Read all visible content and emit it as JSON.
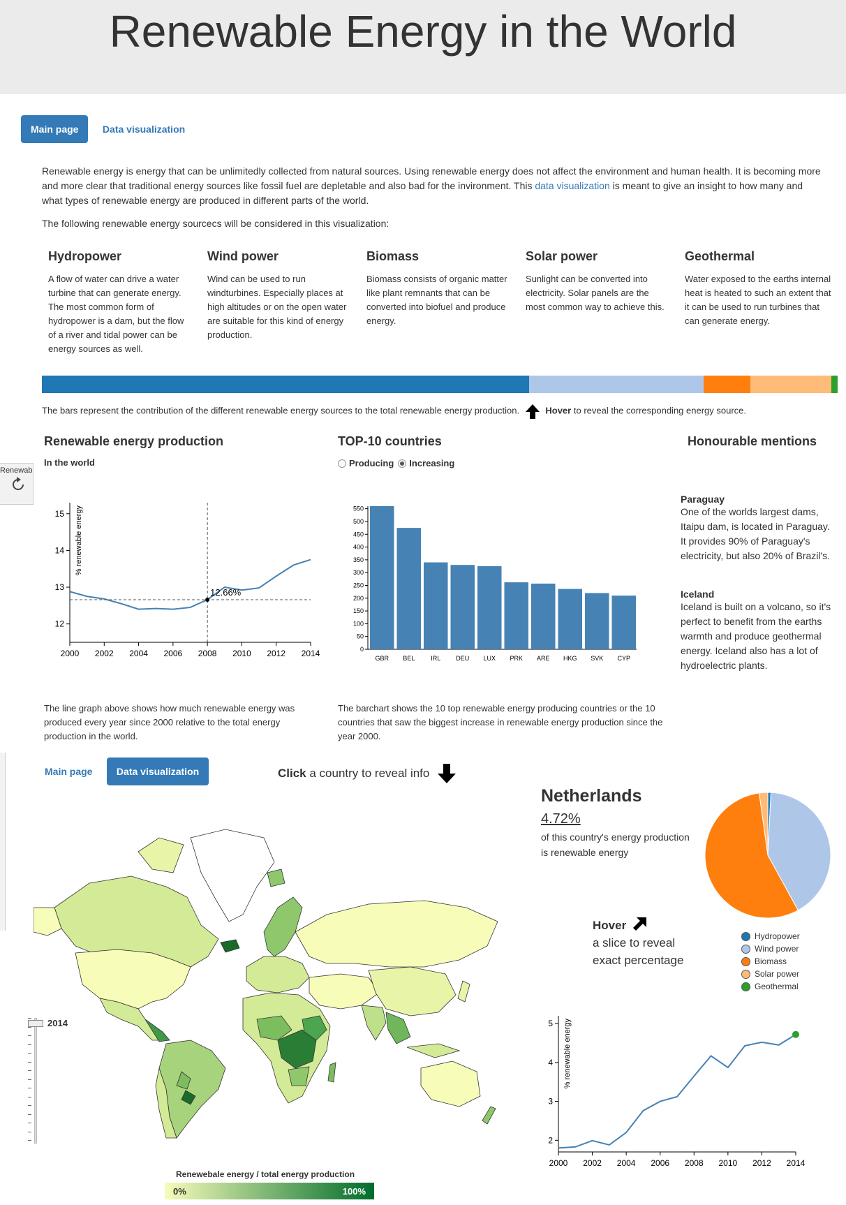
{
  "header": {
    "title": "Renewable Energy in the World"
  },
  "nav_top": {
    "main_label": "Main page",
    "dataviz_label": "Data visualization"
  },
  "intro": {
    "p1_a": "Renewable energy is energy that can be unlimitedly collected from natural sources. Using renewable energy does not affect the environment and human health. It is becoming more and more clear that traditional energy sources like fossil fuel are depletable and also bad for the invironment. This ",
    "p1_link": "data visualization",
    "p1_b": " is meant to give an insight to how many and what types of renewable energy are produced in different parts of the world.",
    "p2": "The following renewable energy sourcecs will be considered in this visualization:"
  },
  "sources": [
    {
      "title": "Hydropower",
      "text": "A flow of water can drive a water turbine that can generate energy. The most common form of hydropower is a dam, but the flow of a river and tidal power can be energy sources as well."
    },
    {
      "title": "Wind power",
      "text": "Wind can be used to run windturbines. Especially places at high altitudes or on the open water are suitable for this kind of energy production."
    },
    {
      "title": "Biomass",
      "text": "Biomass consists of organic matter like plant remnants that can be converted into biofuel and produce energy."
    },
    {
      "title": "Solar power",
      "text": "Sunlight can be converted into electricity. Solar panels are the most common way to achieve this."
    },
    {
      "title": "Geothermal",
      "text": "Water exposed to the earths internal heat is heated to such an extent that it can be used to run turbines that can generate energy."
    }
  ],
  "contribution_bar": {
    "segments": [
      {
        "name": "Hydropower",
        "fraction": 0.612,
        "color": "#1f77b4"
      },
      {
        "name": "Wind power",
        "fraction": 0.22,
        "color": "#aec7e8"
      },
      {
        "name": "Biomass",
        "fraction": 0.058,
        "color": "#ff7f0e"
      },
      {
        "name": "Solar power",
        "fraction": 0.102,
        "color": "#ffbb78"
      },
      {
        "name": "Geothermal",
        "fraction": 0.008,
        "color": "#2ca02c"
      }
    ],
    "caption_a": "The bars represent the contribution of the different renewable energy sources to the total renewable energy production.",
    "caption_hover": "Hover",
    "caption_b": "to reveal the corresponding energy source."
  },
  "world_section": {
    "title": "Renewable energy production",
    "subtitle": "In the world",
    "caption": "The line graph above shows how much renewable energy was produced every year since 2000 relative to the total energy production in the world."
  },
  "top10_section": {
    "title": "TOP-10 countries",
    "radio_producing": "Producing",
    "radio_increasing": "Increasing",
    "selected": "Increasing",
    "caption": "The barchart shows the 10 top renewable energy producing countries or the 10 countries that saw the biggest increase in renewable energy production since the year 2000."
  },
  "mentions": {
    "title": "Honourable mentions",
    "items": [
      {
        "name": "Paraguay",
        "text": "One of the worlds largest dams, Itaipu dam, is located in Paraguay. It provides 90% of Paraguay's electricity, but also 20% of Brazil's."
      },
      {
        "name": "Iceland",
        "text": "Iceland is built on a volcano, so it's perfect to benefit from the earths warmth and produce geothermal energy. Iceland also has a lot of hydroelectric plants."
      }
    ]
  },
  "nav_bottom": {
    "main_label": "Main page",
    "dataviz_label": "Data visualization"
  },
  "click_hint": {
    "bold": "Click",
    "rest": "a country to reveal info"
  },
  "country": {
    "name": "Netherlands",
    "percent": "4.72%",
    "desc": "of this country's energy production is renewable energy"
  },
  "hover_hint": {
    "bold": "Hover",
    "rest": "a slice to reveal exact percentage"
  },
  "pie_legend": [
    "Hydropower",
    "Wind power",
    "Biomass",
    "Solar power",
    "Geothermal"
  ],
  "slider": {
    "year": "2014"
  },
  "map_legend": {
    "title": "Renewebale energy / total energy production",
    "min": "0%",
    "max": "100%",
    "low_color": "#f7fcb9",
    "high_color": "#006d2c"
  },
  "browser_fragment": {
    "tab": "Renewab"
  },
  "chart_data": [
    {
      "type": "line",
      "name": "world",
      "x": [
        2000,
        2001,
        2002,
        2003,
        2004,
        2005,
        2006,
        2007,
        2008,
        2009,
        2010,
        2011,
        2012,
        2013,
        2014
      ],
      "y": [
        12.88,
        12.75,
        12.68,
        12.55,
        12.4,
        12.42,
        12.4,
        12.45,
        12.66,
        13.0,
        12.92,
        12.98,
        13.3,
        13.6,
        13.75
      ],
      "xlim": [
        2000,
        2014
      ],
      "ylim": [
        11.5,
        15.3
      ],
      "xticks": [
        2000,
        2002,
        2004,
        2006,
        2008,
        2010,
        2012,
        2014
      ],
      "yticks": [
        12,
        13,
        14,
        15
      ],
      "ylabel": "% renewable energy",
      "annotation": {
        "x": 2008,
        "y": 12.66,
        "label": "12.66%"
      }
    },
    {
      "type": "bar",
      "name": "top10",
      "categories": [
        "GBR",
        "BEL",
        "IRL",
        "DEU",
        "LUX",
        "PRK",
        "ARE",
        "HKG",
        "SVK",
        "CYP"
      ],
      "values": [
        560,
        475,
        340,
        330,
        325,
        262,
        257,
        236,
        220,
        210
      ],
      "ylim": [
        0,
        560
      ],
      "yticks": [
        0,
        50,
        100,
        150,
        200,
        250,
        300,
        350,
        400,
        450,
        500,
        550
      ],
      "color": "#4682b4"
    },
    {
      "type": "pie",
      "name": "netherlands-mix",
      "labels": [
        "Hydropower",
        "Wind power",
        "Biomass",
        "Solar power",
        "Geothermal"
      ],
      "values": [
        0.8,
        41.2,
        55.8,
        2.2,
        0.0
      ],
      "colors": [
        "#1f77b4",
        "#aec7e8",
        "#ff7f0e",
        "#ffbb78",
        "#2ca02c"
      ]
    },
    {
      "type": "line",
      "name": "netherlands",
      "x": [
        2000,
        2001,
        2002,
        2003,
        2004,
        2005,
        2006,
        2007,
        2008,
        2009,
        2010,
        2011,
        2012,
        2013,
        2014
      ],
      "y": [
        1.8,
        1.83,
        1.99,
        1.88,
        2.2,
        2.76,
        3.0,
        3.12,
        3.65,
        4.17,
        3.87,
        4.43,
        4.52,
        4.45,
        4.72
      ],
      "xlim": [
        2000,
        2014
      ],
      "ylim": [
        1.7,
        5.2
      ],
      "xticks": [
        2000,
        2002,
        2004,
        2006,
        2008,
        2010,
        2012,
        2014
      ],
      "yticks": [
        2,
        3,
        4,
        5
      ],
      "ylabel": "% renewable energy"
    }
  ]
}
